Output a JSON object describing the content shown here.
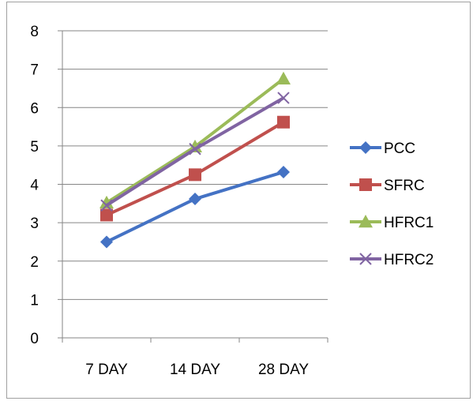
{
  "chart_data": {
    "type": "line",
    "title": "",
    "xlabel": "",
    "ylabel": "",
    "categories": [
      "7 DAY",
      "14 DAY",
      "28 DAY"
    ],
    "ylim": [
      0,
      8
    ],
    "yticks": [
      0,
      1,
      2,
      3,
      4,
      5,
      6,
      7,
      8
    ],
    "grid": true,
    "legend": "right",
    "series": [
      {
        "name": "PCC",
        "values": [
          2.5,
          3.62,
          4.32
        ],
        "color": "#4472c4",
        "marker": "diamond"
      },
      {
        "name": "SFRC",
        "values": [
          3.2,
          4.25,
          5.62
        ],
        "color": "#c0504d",
        "marker": "square"
      },
      {
        "name": "HFRC1",
        "values": [
          3.52,
          4.98,
          6.75
        ],
        "color": "#9bbb59",
        "marker": "triangle"
      },
      {
        "name": "HFRC2",
        "values": [
          3.45,
          4.92,
          6.25
        ],
        "color": "#8064a2",
        "marker": "x"
      }
    ]
  }
}
